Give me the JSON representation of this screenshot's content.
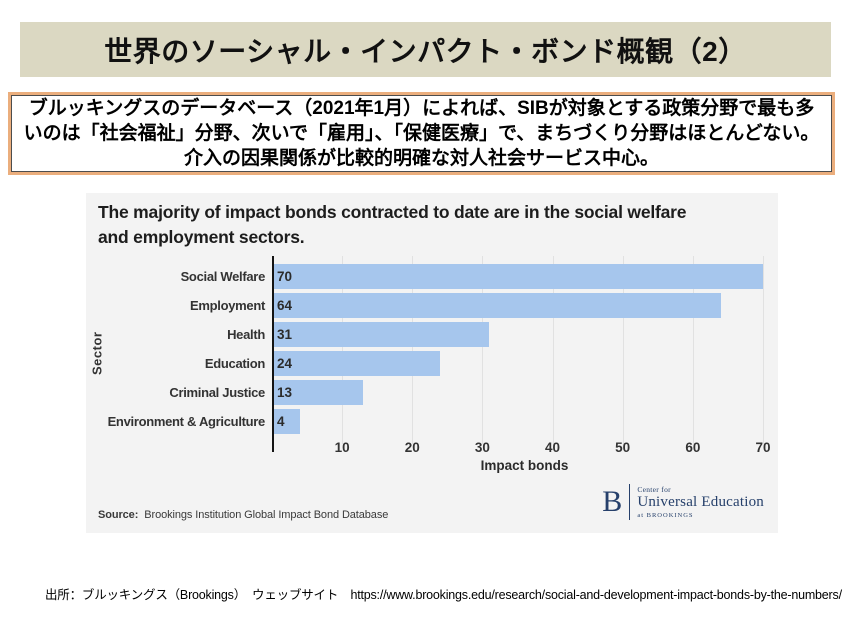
{
  "slide": {
    "title": "世界のソーシャル・インパクト・ボンド概観（2）",
    "summary": "ブルッキングスのデータベース（2021年1月）によれば、SIBが対象とする政策分野で最も多いのは「社会福祉」分野、次いで「雇用」、「保健医療」で、まちづくり分野はほとんどない。介入の因果関係が比較的明確な対人社会サービス中心。",
    "footer": "出所：ブルッキングス（Brookings）　ウェッブサイト　https://www.brookings.edu/research/social-and-development-impact-bonds-by-the-numbers/"
  },
  "chart_data": {
    "type": "bar",
    "orientation": "horizontal",
    "title": "The majority of impact bonds contracted to date are in the social welfare and employment sectors.",
    "categories": [
      "Social Welfare",
      "Employment",
      "Health",
      "Education",
      "Criminal Justice",
      "Environment & Agriculture"
    ],
    "values": [
      70,
      64,
      31,
      24,
      13,
      4
    ],
    "xlabel": "Impact bonds",
    "ylabel": "Sector",
    "xlim": [
      0,
      72
    ],
    "xticks": [
      10,
      20,
      30,
      40,
      50,
      60,
      70
    ],
    "grid": true,
    "legend": "none",
    "bar_color": "#a6c6ed",
    "source_label": "Source:",
    "source_text": "Brookings Institution Global Impact Bond Database"
  },
  "logo": {
    "letter": "B",
    "line1": "Center for",
    "line2": "Universal Education",
    "line3": "at BROOKINGS",
    "color": "#26406b"
  },
  "colors": {
    "title_bar_bg": "#dbd8c2",
    "summary_border_outer": "#ebae7d",
    "summary_border_inner": "#4d4d4d",
    "chart_card_bg": "#f3f3f3",
    "bar_fill": "#a6c6ed",
    "gridline": "#e1e1e1",
    "axis_line": "#141414"
  }
}
